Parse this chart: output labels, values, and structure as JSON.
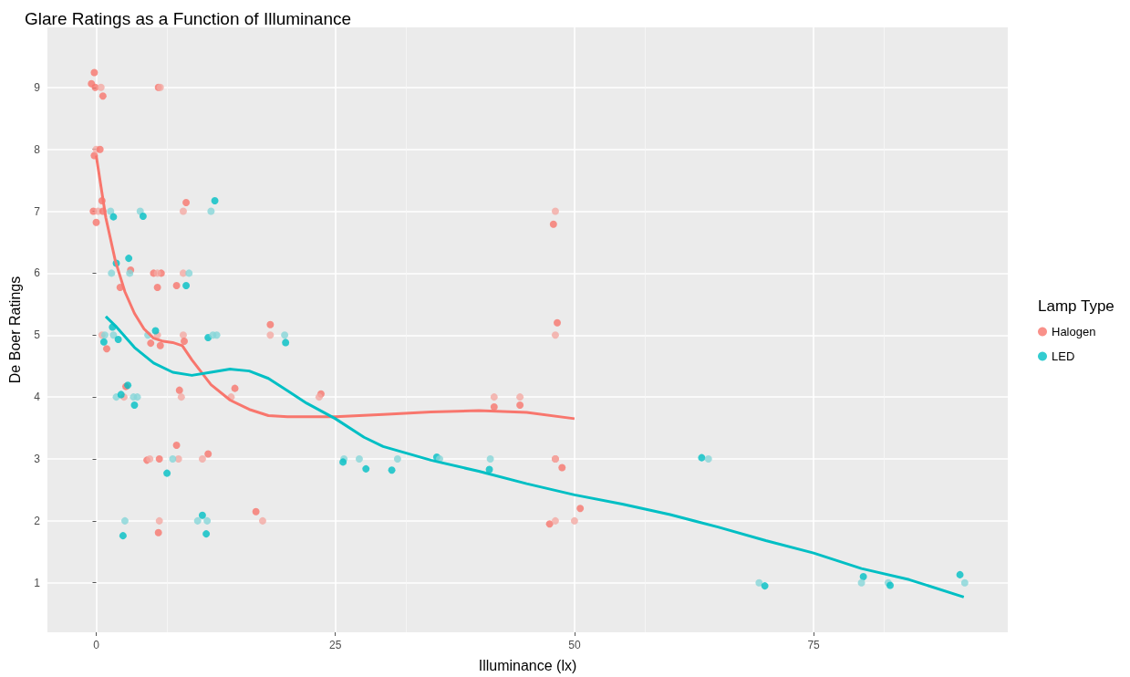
{
  "chart_data": {
    "type": "scatter",
    "title": "Glare Ratings as a Function of Illuminance",
    "xlabel": "Illuminance (lx)",
    "ylabel": "De Boer Ratings",
    "legend_title": "Lamp Type",
    "legend": "right",
    "grid": true,
    "marker": "circle",
    "xlim": [
      -5.1,
      95.3
    ],
    "xticks": [
      0,
      25,
      50,
      75
    ],
    "ylim": [
      0.2,
      9.97
    ],
    "yticks": [
      1,
      2,
      3,
      4,
      5,
      6,
      7,
      8,
      9
    ],
    "series": [
      {
        "name": "Halogen",
        "color": "#f8766d",
        "x": [
          -0.2,
          -0.5,
          0.7,
          6.5,
          6.7,
          -0.1,
          0.5,
          -0.2,
          0,
          0.4,
          0.6,
          -0.3,
          0.2,
          0.7,
          0,
          9.4,
          9.1,
          3.6,
          2.5,
          6.0,
          6.8,
          6.4,
          6.4,
          8.4,
          9.1,
          0.6,
          1.1,
          6.4,
          5.7,
          6.7,
          9.1,
          9.2,
          2.9,
          3.1,
          8.7,
          8.9,
          14.5,
          14.1,
          5.3,
          5.6,
          6.6,
          8.6,
          8.4,
          11.1,
          11.7,
          6.6,
          6.5,
          18.2,
          18.2,
          23.5,
          23.3,
          41.6,
          41.6,
          44.3,
          44.3,
          16.7,
          17.4,
          48.2,
          48.0,
          48.0,
          48.0,
          48.7,
          47.4,
          48.0,
          50.0,
          50.6,
          48.0,
          47.8
        ],
        "values": [
          9.24,
          9.06,
          8.86,
          9.0,
          9.0,
          9.0,
          9.0,
          7.9,
          8.0,
          8.0,
          7.17,
          7.0,
          7.0,
          7.0,
          6.82,
          7.14,
          7.0,
          6.05,
          5.77,
          6.0,
          6.0,
          6.0,
          5.77,
          5.8,
          6.0,
          5.0,
          4.78,
          5.0,
          4.87,
          4.83,
          5.0,
          4.9,
          4.0,
          4.17,
          4.11,
          4.0,
          4.14,
          4.0,
          2.98,
          3.0,
          3.0,
          3.0,
          3.22,
          3.0,
          3.08,
          2.0,
          1.81,
          5.17,
          5.0,
          4.05,
          4.0,
          4.0,
          3.84,
          4.0,
          3.87,
          2.15,
          2.0,
          5.2,
          5.0,
          3.0,
          3.0,
          2.86,
          1.95,
          2.0,
          2.0,
          2.2,
          7.0,
          6.79
        ],
        "colors": [
          "#f8766d",
          "#f8766d",
          "#f8766d",
          "#f8766d",
          "#f4a9a3",
          "#f8766d",
          "#f4a9a3",
          "#f8766d",
          "#f4a9a3",
          "#f8766d",
          "#f8766d",
          "#f8766d",
          "#f4a9a3",
          "#f8766d",
          "#f8766d",
          "#f8766d",
          "#f4a9a3",
          "#f8766d",
          "#f8766d",
          "#f8766d",
          "#f8766d",
          "#f4a9a3",
          "#f8766d",
          "#f8766d",
          "#f4a9a3",
          "#f4a9a3",
          "#f8766d",
          "#f4a9a3",
          "#f8766d",
          "#f8766d",
          "#f4a9a3",
          "#f8766d",
          "#f4a9a3",
          "#f8766d",
          "#f8766d",
          "#f4a9a3",
          "#f8766d",
          "#f4a9a3",
          "#f8766d",
          "#f4a9a3",
          "#f8766d",
          "#f4a9a3",
          "#f8766d",
          "#f4a9a3",
          "#f8766d",
          "#f4a9a3",
          "#f8766d",
          "#f8766d",
          "#f4a9a3",
          "#f8766d",
          "#f4a9a3",
          "#f4a9a3",
          "#f8766d",
          "#f4a9a3",
          "#f8766d",
          "#f8766d",
          "#f4a9a3",
          "#f8766d",
          "#f4a9a3",
          "#f8766d",
          "#f4a9a3",
          "#f8766d",
          "#f8766d",
          "#f4a9a3",
          "#f4a9a3",
          "#f8766d",
          "#f4a9a3",
          "#f8766d"
        ]
      },
      {
        "name": "LED",
        "color": "#00bfc4",
        "x": [
          12.4,
          12.0,
          1.5,
          1.8,
          4.6,
          4.9,
          3.4,
          2.1,
          1.6,
          3.5,
          9.4,
          9.7,
          1.7,
          0.9,
          1.8,
          0.8,
          2.3,
          6.2,
          5.4,
          11.7,
          12.2,
          12.6,
          2.1,
          2.6,
          3.3,
          3.9,
          4.3,
          4.0,
          8.0,
          7.4,
          3.0,
          2.8,
          10.6,
          11.6,
          11.1,
          11.5,
          19.7,
          19.8,
          25.9,
          25.8,
          27.5,
          28.2,
          31.5,
          30.9,
          35.6,
          35.9,
          41.2,
          41.1,
          63.3,
          64.0,
          69.3,
          69.9,
          80.2,
          80.0,
          82.8,
          83.0,
          90.3,
          90.8
        ],
        "values": [
          7.17,
          7.0,
          7.0,
          6.91,
          7.0,
          6.92,
          6.24,
          6.16,
          6.0,
          6.0,
          5.8,
          6.0,
          5.13,
          5.0,
          5.0,
          4.89,
          4.93,
          5.07,
          5.0,
          4.96,
          5.0,
          5.0,
          4.0,
          4.04,
          4.19,
          4.0,
          4.0,
          3.87,
          3.0,
          2.77,
          2.0,
          1.76,
          2.0,
          2.0,
          2.09,
          1.79,
          5.0,
          4.88,
          3.0,
          2.95,
          3.0,
          2.84,
          3.0,
          2.82,
          3.03,
          3.0,
          3.0,
          2.83,
          3.02,
          3.0,
          1.0,
          0.95,
          1.1,
          1.0,
          1.0,
          0.96,
          1.13,
          1.0
        ],
        "colors": [
          "#00bfc4",
          "#86d6d8",
          "#86d6d8",
          "#00bfc4",
          "#86d6d8",
          "#00bfc4",
          "#00bfc4",
          "#00bfc4",
          "#86d6d8",
          "#86d6d8",
          "#00bfc4",
          "#86d6d8",
          "#00bfc4",
          "#86d6d8",
          "#86d6d8",
          "#00bfc4",
          "#00bfc4",
          "#00bfc4",
          "#86d6d8",
          "#00bfc4",
          "#86d6d8",
          "#86d6d8",
          "#86d6d8",
          "#00bfc4",
          "#00bfc4",
          "#86d6d8",
          "#86d6d8",
          "#00bfc4",
          "#86d6d8",
          "#00bfc4",
          "#86d6d8",
          "#00bfc4",
          "#86d6d8",
          "#86d6d8",
          "#00bfc4",
          "#00bfc4",
          "#86d6d8",
          "#00bfc4",
          "#86d6d8",
          "#00bfc4",
          "#86d6d8",
          "#00bfc4",
          "#86d6d8",
          "#00bfc4",
          "#00bfc4",
          "#86d6d8",
          "#86d6d8",
          "#00bfc4",
          "#00bfc4",
          "#86d6d8",
          "#86d6d8",
          "#00bfc4",
          "#00bfc4",
          "#86d6d8",
          "#86d6d8",
          "#00bfc4",
          "#00bfc4",
          "#86d6d8"
        ]
      },
      {
        "type": "line",
        "color": "#f8766d",
        "marker": "none",
        "x": [
          0,
          0.5,
          1,
          2,
          3,
          4,
          5,
          6,
          7,
          8,
          9,
          10,
          12,
          14,
          16,
          18,
          20,
          25,
          30,
          35,
          40,
          45,
          50
        ],
        "values": [
          7.9,
          7.4,
          6.9,
          6.2,
          5.7,
          5.35,
          5.1,
          4.95,
          4.9,
          4.88,
          4.83,
          4.6,
          4.2,
          3.95,
          3.8,
          3.7,
          3.68,
          3.68,
          3.72,
          3.76,
          3.78,
          3.75,
          3.65
        ]
      },
      {
        "type": "line",
        "color": "#00bfc4",
        "marker": "none",
        "x": [
          1,
          2,
          4,
          6,
          8,
          10,
          12,
          14,
          16,
          18,
          20,
          22,
          25,
          28,
          30,
          35,
          40,
          45,
          50,
          55,
          60,
          65,
          70,
          75,
          80,
          85,
          90.7
        ],
        "values": [
          5.3,
          5.15,
          4.8,
          4.55,
          4.4,
          4.35,
          4.4,
          4.45,
          4.42,
          4.3,
          4.1,
          3.9,
          3.65,
          3.35,
          3.2,
          2.98,
          2.8,
          2.6,
          2.42,
          2.27,
          2.1,
          1.9,
          1.68,
          1.48,
          1.23,
          1.05,
          0.77
        ]
      }
    ]
  }
}
